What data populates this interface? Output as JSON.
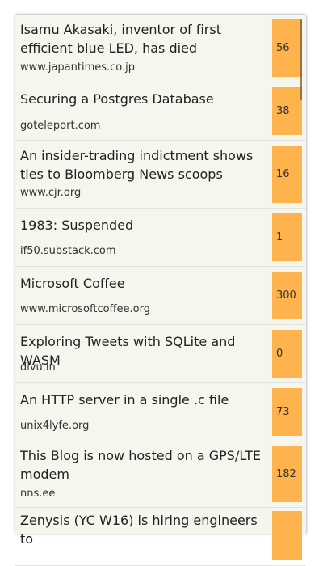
{
  "stories": [
    {
      "title": "Isamu Akasaki, inventor of first efficient blue LED, has died",
      "domain": "www.japantimes.co.jp",
      "score": "56"
    },
    {
      "title": "Securing a Postgres Database",
      "domain": "goteleport.com",
      "score": "38"
    },
    {
      "title": "An insider-trading indictment shows ties to Bloomberg News scoops",
      "domain": "www.cjr.org",
      "score": "16"
    },
    {
      "title": "1983: Suspended",
      "domain": "if50.substack.com",
      "score": "1"
    },
    {
      "title": "Microsoft Coffee",
      "domain": "www.microsoftcoffee.org",
      "score": "300"
    },
    {
      "title": "Exploring Tweets with SQLite and WASM",
      "domain": "divu.in",
      "score": "0"
    },
    {
      "title": "An HTTP server in a single .c file",
      "domain": "unix4lyfe.org",
      "score": "73"
    },
    {
      "title": "This Blog is now hosted on a GPS/LTE modem",
      "domain": "nns.ee",
      "score": "182"
    },
    {
      "title": "Zenysis (YC W16) is hiring engineers to",
      "domain": "",
      "score": ""
    }
  ],
  "colors": {
    "panel_bg": "#f6f6ef",
    "score_bg": "#ffb34d"
  }
}
